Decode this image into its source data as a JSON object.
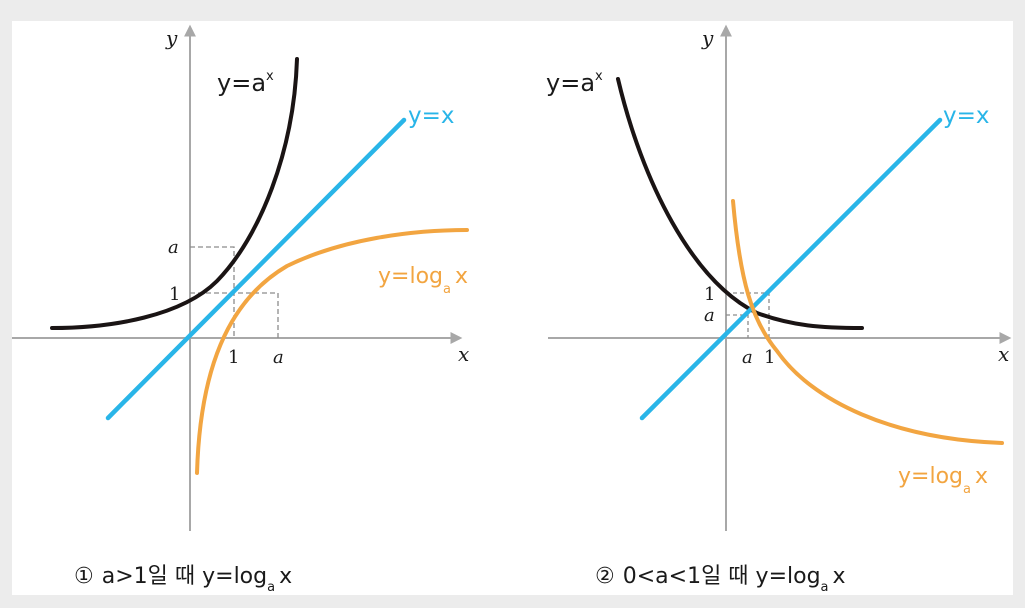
{
  "colors": {
    "exp_curve": "#1a1414",
    "identity_line": "#29b5e8",
    "log_curve": "#f2a541",
    "axis": "#a8a8a8",
    "guide": "#8c8c8c",
    "text": "#1a1a1a",
    "background": "#ffffff",
    "page_bg": "#ececec"
  },
  "panels": [
    {
      "caption": {
        "number": "①",
        "condition": "a>1일 때 y=log",
        "base": "a",
        "arg": "x"
      },
      "axis_x_label": "x",
      "axis_y_label": "y",
      "exp_label": {
        "main": "y=a",
        "sup": "x"
      },
      "identity_label": "y=x",
      "log_label": {
        "main": "y=log",
        "base": "a",
        "arg": "x"
      },
      "tick_x": [
        "1",
        "a"
      ],
      "tick_y": [
        "a",
        "1"
      ]
    },
    {
      "caption": {
        "number": "②",
        "condition": "0<a<1일 때 y=log",
        "base": "a",
        "arg": "x"
      },
      "axis_x_label": "x",
      "axis_y_label": "y",
      "exp_label": {
        "main": "y=a",
        "sup": "x"
      },
      "identity_label": "y=x",
      "log_label": {
        "main": "y=log",
        "base": "a",
        "arg": "x"
      },
      "tick_x": [
        "a",
        "1"
      ],
      "tick_y": [
        "1",
        "a"
      ]
    }
  ]
}
